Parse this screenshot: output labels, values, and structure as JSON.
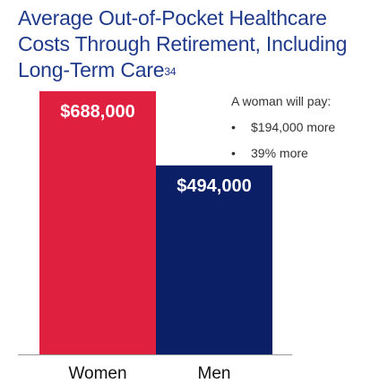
{
  "title": {
    "line1": "Average Out-of-Pocket Healthcare",
    "line2": "Costs Through Retirement, Including",
    "line3": "Long-Term Care",
    "footnote": "34"
  },
  "callout": {
    "heading": "A woman will pay:",
    "bullets": [
      "$194,000 more",
      "39% more"
    ]
  },
  "colors": {
    "title": "#1f3a8a",
    "women_bar": "#e0203f",
    "men_bar": "#0b1f66",
    "axis": "#999999"
  },
  "chart_data": {
    "type": "bar",
    "categories": [
      "Women",
      "Men"
    ],
    "values": [
      688000,
      494000
    ],
    "data_labels": [
      "$688,000",
      "$494,000"
    ],
    "ylim": [
      0,
      800000
    ],
    "grid": false,
    "legend": "none"
  }
}
